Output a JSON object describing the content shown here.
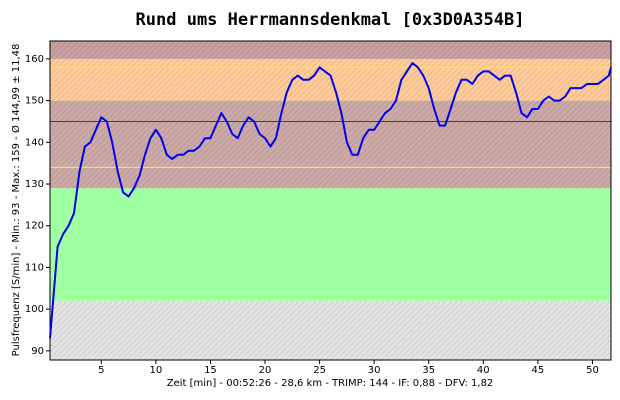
{
  "chart_data": {
    "type": "line",
    "title": "Rund ums Herrmannsdenkmal [0x3D0A354B]",
    "x_label": "Zeit [min] - 00:52:26 - 28,6 km - TRIMP: 144 - IF: 0,88 - DFV: 1,82",
    "y_label": "Pulsfrequenz [S/min] - Min.: 93 - Max.: 159 - Ø 144,99 ± 11,48",
    "xlim": [
      0.3,
      51.7
    ],
    "ylim": [
      87.8,
      164.3
    ],
    "xticks": [
      5,
      10,
      15,
      20,
      25,
      30,
      35,
      40,
      45,
      50
    ],
    "yticks": [
      90,
      100,
      110,
      120,
      130,
      140,
      150,
      160
    ],
    "zones": [
      {
        "from": 87.8,
        "to": 102,
        "color": "#e4e4e4"
      },
      {
        "from": 102,
        "to": 129,
        "color": "#a0ffa0"
      },
      {
        "from": 129,
        "to": 150,
        "color": "#ccaaa8"
      },
      {
        "from": 150,
        "to": 160,
        "color": "#ffcc99"
      },
      {
        "from": 160,
        "to": 164.3,
        "color": "#c8a0a0"
      }
    ],
    "reference_lines": [
      {
        "value": 158,
        "color": "#ffee33"
      },
      {
        "value": 134,
        "color": "#ffee33"
      },
      {
        "value": 144.99,
        "color": "#dd0000"
      }
    ],
    "series": [
      {
        "color": "#0000ee",
        "x": [
          0.3,
          1,
          1.5,
          2,
          2.5,
          3,
          3.5,
          4,
          4.5,
          5,
          5.5,
          6,
          6.5,
          7,
          7.5,
          8,
          8.5,
          9,
          9.5,
          10,
          10.5,
          11,
          11.5,
          12,
          12.5,
          13,
          13.5,
          14,
          14.5,
          15,
          15.5,
          16,
          16.5,
          17,
          17.5,
          18,
          18.5,
          19,
          19.5,
          20,
          20.5,
          21,
          21.5,
          22,
          22.5,
          23,
          23.5,
          24,
          24.5,
          25,
          25.5,
          26,
          26.5,
          27,
          27.5,
          28,
          28.5,
          29,
          29.5,
          30,
          30.5,
          31,
          31.5,
          32,
          32.5,
          33,
          33.5,
          34,
          34.5,
          35,
          35.5,
          36,
          36.5,
          37,
          37.5,
          38,
          38.5,
          39,
          39.5,
          40,
          40.5,
          41,
          41.5,
          42,
          42.5,
          43,
          43.5,
          44,
          44.5,
          45,
          45.5,
          46,
          46.5,
          47,
          47.5,
          48,
          48.5,
          49,
          49.5,
          50,
          50.5,
          51,
          51.5,
          51.7
        ],
        "values": [
          93,
          115,
          118,
          120,
          123,
          133,
          139,
          140,
          143,
          146,
          145,
          140,
          133,
          128,
          127,
          129,
          132,
          137,
          141,
          143,
          141,
          137,
          136,
          137,
          137,
          138,
          138,
          139,
          141,
          141,
          144,
          147,
          145,
          142,
          141,
          144,
          146,
          145,
          142,
          141,
          139,
          141,
          147,
          152,
          155,
          156,
          155,
          155,
          156,
          158,
          157,
          156,
          152,
          147,
          140,
          137,
          137,
          141,
          143,
          143,
          145,
          147,
          148,
          150,
          155,
          157,
          159,
          158,
          156,
          153,
          148,
          144,
          144,
          148,
          152,
          155,
          155,
          154,
          156,
          157,
          157,
          156,
          155,
          156,
          156,
          152,
          147,
          146,
          148,
          148,
          150,
          151,
          150,
          150,
          151,
          153,
          153,
          153,
          154,
          154,
          154,
          155,
          156,
          158
        ]
      }
    ]
  }
}
